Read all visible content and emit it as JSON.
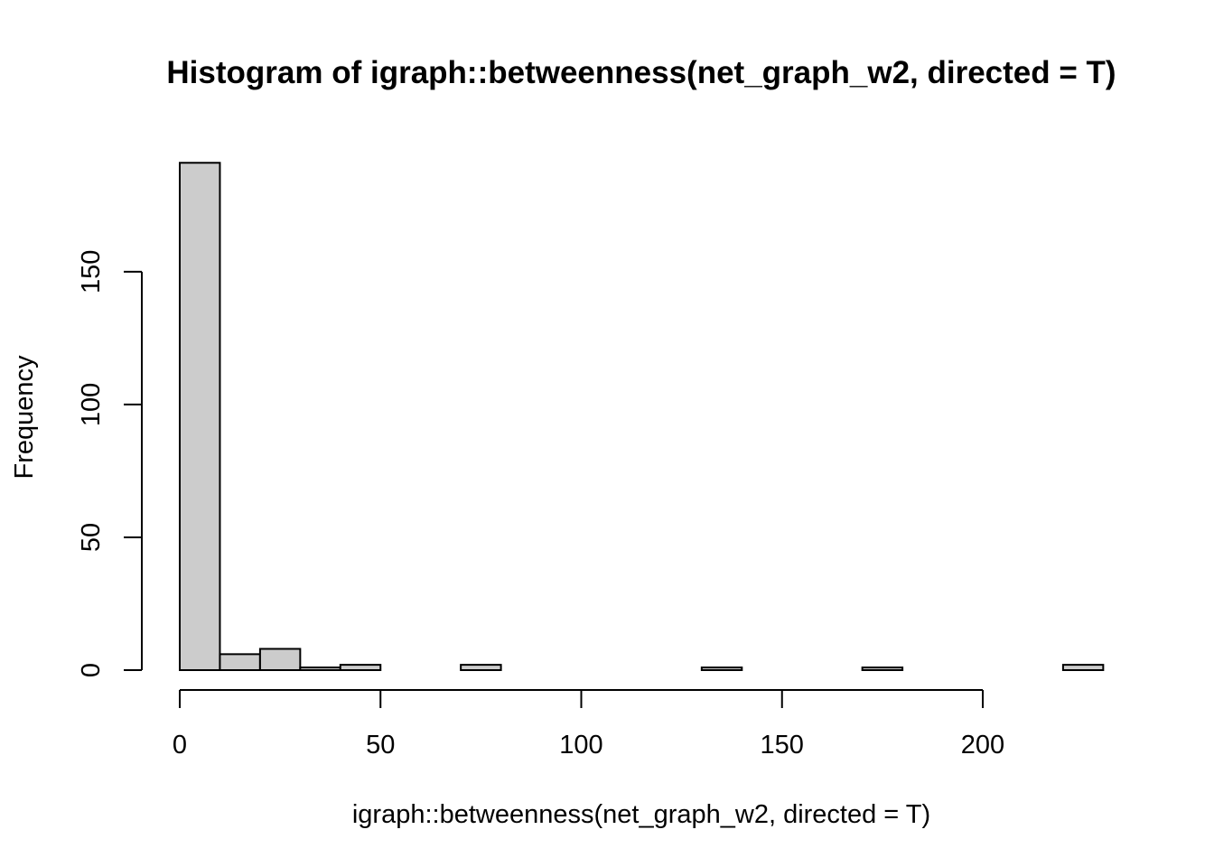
{
  "chart_data": {
    "type": "bar",
    "title": "Histogram of igraph::betweenness(net_graph_w2, directed = T)",
    "xlabel": "igraph::betweenness(net_graph_w2, directed = T)",
    "ylabel": "Frequency",
    "bin_width": 10,
    "x_ticks": [
      0,
      50,
      100,
      150,
      200
    ],
    "y_ticks": [
      0,
      50,
      100,
      150
    ],
    "xlim": [
      0,
      230
    ],
    "ylim": [
      0,
      191
    ],
    "bins": [
      {
        "start": 0,
        "end": 10,
        "count": 191
      },
      {
        "start": 10,
        "end": 20,
        "count": 6
      },
      {
        "start": 20,
        "end": 30,
        "count": 8
      },
      {
        "start": 30,
        "end": 40,
        "count": 1
      },
      {
        "start": 40,
        "end": 50,
        "count": 2
      },
      {
        "start": 50,
        "end": 60,
        "count": 0
      },
      {
        "start": 60,
        "end": 70,
        "count": 0
      },
      {
        "start": 70,
        "end": 80,
        "count": 2
      },
      {
        "start": 80,
        "end": 90,
        "count": 0
      },
      {
        "start": 90,
        "end": 100,
        "count": 0
      },
      {
        "start": 100,
        "end": 110,
        "count": 0
      },
      {
        "start": 110,
        "end": 120,
        "count": 0
      },
      {
        "start": 120,
        "end": 130,
        "count": 0
      },
      {
        "start": 130,
        "end": 140,
        "count": 1
      },
      {
        "start": 140,
        "end": 150,
        "count": 0
      },
      {
        "start": 150,
        "end": 160,
        "count": 0
      },
      {
        "start": 160,
        "end": 170,
        "count": 0
      },
      {
        "start": 170,
        "end": 180,
        "count": 1
      },
      {
        "start": 180,
        "end": 190,
        "count": 0
      },
      {
        "start": 190,
        "end": 200,
        "count": 0
      },
      {
        "start": 200,
        "end": 210,
        "count": 0
      },
      {
        "start": 210,
        "end": 220,
        "count": 0
      },
      {
        "start": 220,
        "end": 230,
        "count": 2
      }
    ],
    "bar_color": "#cccccc",
    "grid": false,
    "legend": "none"
  }
}
